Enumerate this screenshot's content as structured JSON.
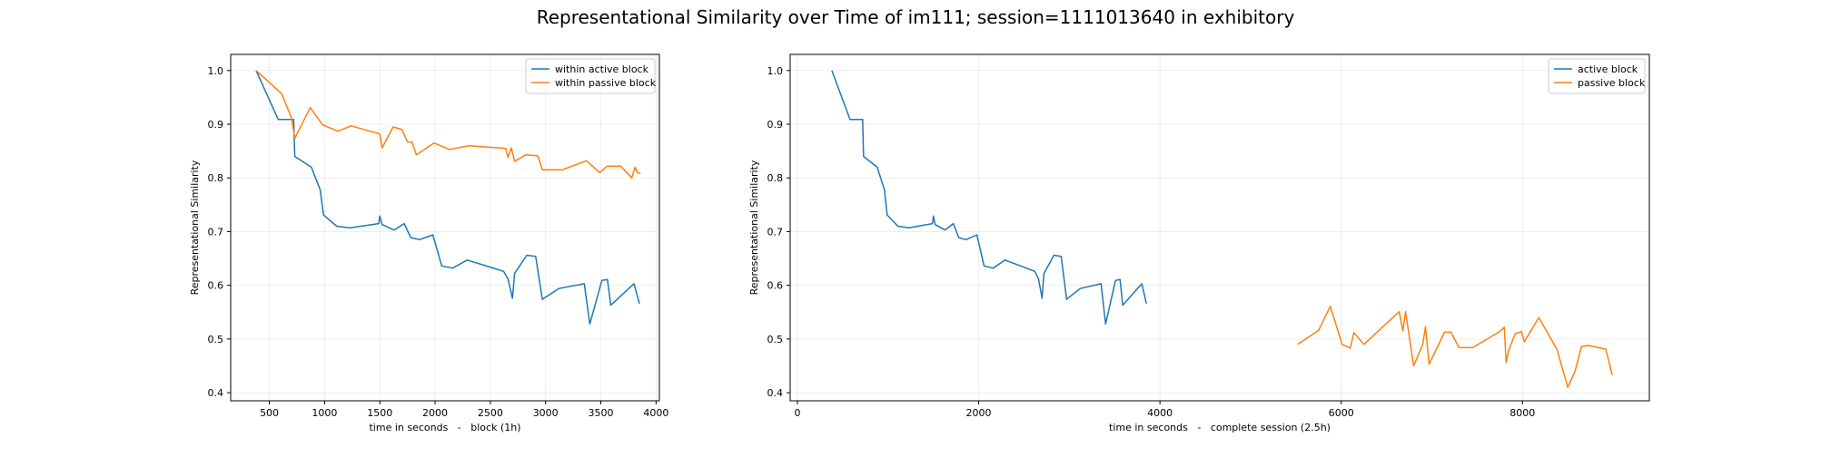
{
  "figure": {
    "title": "Representational Similarity over Time of im111; session=1111013640 in exhibitory"
  },
  "chart_data": [
    {
      "type": "line",
      "xlabel": "time in seconds   -   block (1h)",
      "ylabel": "Representational Similarity",
      "xlim": [
        150,
        4030
      ],
      "ylim": [
        0.385,
        1.03
      ],
      "xticks": [
        500,
        1000,
        1500,
        2000,
        2500,
        3000,
        3500,
        4000
      ],
      "yticks": [
        0.4,
        0.5,
        0.6,
        0.7,
        0.8,
        0.9,
        1.0
      ],
      "grid": true,
      "legend": "top-right",
      "series": [
        {
          "name": "within active block",
          "color": "#1f77b4",
          "x": [
            380,
            580,
            720,
            730,
            880,
            960,
            990,
            1110,
            1230,
            1490,
            1500,
            1520,
            1630,
            1720,
            1780,
            1860,
            1980,
            2060,
            2160,
            2290,
            2480,
            2620,
            2660,
            2700,
            2720,
            2830,
            2910,
            2970,
            3120,
            3350,
            3400,
            3510,
            3560,
            3590,
            3800,
            3850
          ],
          "y": [
            1.0,
            0.909,
            0.909,
            0.84,
            0.82,
            0.778,
            0.731,
            0.71,
            0.707,
            0.715,
            0.729,
            0.713,
            0.703,
            0.715,
            0.689,
            0.685,
            0.694,
            0.636,
            0.632,
            0.647,
            0.635,
            0.626,
            0.612,
            0.576,
            0.622,
            0.656,
            0.654,
            0.574,
            0.594,
            0.603,
            0.528,
            0.609,
            0.611,
            0.563,
            0.603,
            0.566
          ]
        },
        {
          "name": "within passive block",
          "color": "#ff7f0e",
          "x": [
            380,
            610,
            700,
            730,
            870,
            980,
            1120,
            1240,
            1500,
            1520,
            1620,
            1700,
            1750,
            1790,
            1830,
            1990,
            2130,
            2310,
            2640,
            2660,
            2690,
            2720,
            2820,
            2930,
            2970,
            3150,
            3370,
            3490,
            3560,
            3630,
            3680,
            3780,
            3810,
            3830,
            3860
          ],
          "y": [
            1.0,
            0.957,
            0.912,
            0.874,
            0.931,
            0.899,
            0.887,
            0.897,
            0.882,
            0.856,
            0.895,
            0.89,
            0.867,
            0.867,
            0.843,
            0.865,
            0.853,
            0.86,
            0.855,
            0.838,
            0.856,
            0.831,
            0.843,
            0.841,
            0.815,
            0.815,
            0.832,
            0.81,
            0.822,
            0.822,
            0.822,
            0.8,
            0.82,
            0.81,
            0.808
          ]
        }
      ]
    },
    {
      "type": "line",
      "xlabel": "time in seconds   -   complete session (2.5h)",
      "ylabel": "Representational Similarity",
      "xlim": [
        -80,
        9400
      ],
      "ylim": [
        0.385,
        1.03
      ],
      "xticks": [
        0,
        2000,
        4000,
        6000,
        8000
      ],
      "yticks": [
        0.4,
        0.5,
        0.6,
        0.7,
        0.8,
        0.9,
        1.0
      ],
      "grid": true,
      "legend": "top-right",
      "series": [
        {
          "name": "active block",
          "color": "#1f77b4",
          "x": [
            380,
            580,
            720,
            730,
            880,
            960,
            990,
            1110,
            1230,
            1490,
            1500,
            1520,
            1630,
            1720,
            1780,
            1860,
            1980,
            2060,
            2160,
            2290,
            2480,
            2620,
            2660,
            2700,
            2720,
            2830,
            2910,
            2970,
            3120,
            3350,
            3400,
            3510,
            3560,
            3590,
            3800,
            3850
          ],
          "y": [
            1.0,
            0.909,
            0.909,
            0.84,
            0.82,
            0.778,
            0.731,
            0.71,
            0.707,
            0.715,
            0.729,
            0.713,
            0.703,
            0.715,
            0.689,
            0.685,
            0.694,
            0.636,
            0.632,
            0.647,
            0.635,
            0.626,
            0.612,
            0.576,
            0.622,
            0.656,
            0.654,
            0.574,
            0.594,
            0.603,
            0.528,
            0.609,
            0.611,
            0.563,
            0.603,
            0.566
          ]
        },
        {
          "name": "passive block",
          "color": "#ff7f0e",
          "x": [
            5520,
            5750,
            5880,
            6010,
            6100,
            6140,
            6250,
            6640,
            6680,
            6710,
            6800,
            6900,
            6930,
            6970,
            7140,
            7210,
            7300,
            7450,
            7750,
            7800,
            7820,
            7850,
            7920,
            7990,
            8020,
            8180,
            8380,
            8500,
            8580,
            8650,
            8730,
            8920,
            8990
          ],
          "y": [
            0.49,
            0.516,
            0.561,
            0.49,
            0.483,
            0.512,
            0.49,
            0.551,
            0.515,
            0.551,
            0.45,
            0.49,
            0.523,
            0.453,
            0.513,
            0.513,
            0.484,
            0.484,
            0.514,
            0.522,
            0.456,
            0.48,
            0.51,
            0.514,
            0.495,
            0.54,
            0.481,
            0.41,
            0.44,
            0.486,
            0.488,
            0.481,
            0.433
          ]
        }
      ]
    }
  ]
}
